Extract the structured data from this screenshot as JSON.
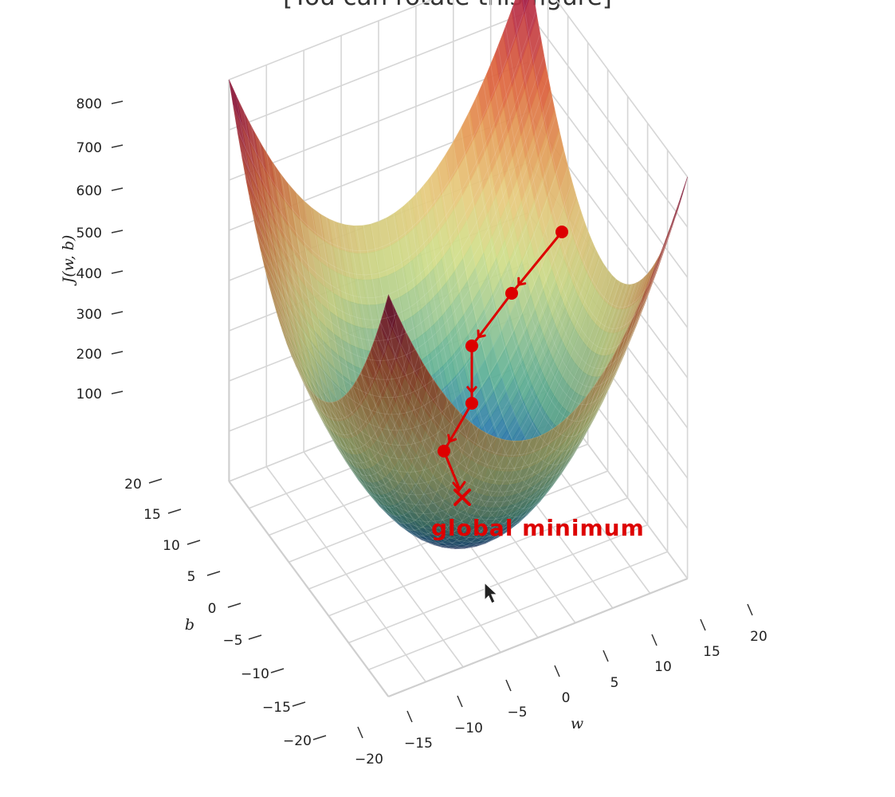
{
  "chart_data": {
    "type": "surface",
    "title": "[You can rotate this figure]",
    "zlabel": "J(w, b)",
    "xlabel": "w",
    "ylabel": "b",
    "z_ticks": [
      "100",
      "200",
      "300",
      "400",
      "500",
      "600",
      "700",
      "800"
    ],
    "w_ticks": [
      "−20",
      "−15",
      "−10",
      "−5",
      "0",
      "5",
      "10",
      "15",
      "20"
    ],
    "b_ticks": [
      "20",
      "15",
      "10",
      "5",
      "0",
      "−5",
      "−10",
      "−15",
      "−20"
    ],
    "w_range": [
      -20,
      20
    ],
    "b_range": [
      -20,
      20
    ],
    "z_range": [
      0,
      800
    ],
    "colormap": [
      "#1a1a1a",
      "#5e4fa2",
      "#3288bd",
      "#66c2a5",
      "#abdda4",
      "#e6f598",
      "#fee08b",
      "#fdae61",
      "#f46d43",
      "#d53e4f",
      "#9e0142"
    ],
    "path_points": 6,
    "path_color": "#dd0000",
    "annotation": "global minimum",
    "grid": true
  }
}
